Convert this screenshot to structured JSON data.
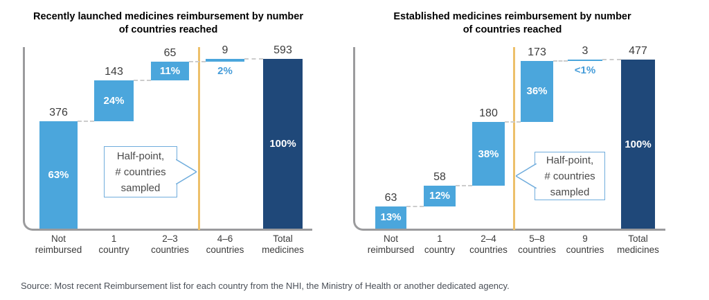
{
  "chart_data": [
    {
      "type": "bar",
      "subtype": "waterfall",
      "title": "Recently launched medicines reimbursement by number\nof countries reached",
      "categories": [
        "Not reimbursed",
        "1 country",
        "2–3 countries",
        "4–6 countries",
        "Total medicines"
      ],
      "values": [
        376,
        143,
        65,
        9,
        593
      ],
      "percent_labels": [
        "63%",
        "24%",
        "11%",
        "2%",
        "100%"
      ],
      "total_index": 4,
      "total_value": 593,
      "callout_text": "Half-point,\n# countries\nsampled",
      "half_point_divider_between": [
        "2–3 countries",
        "4–6 countries"
      ],
      "legend": "none",
      "grid": "off"
    },
    {
      "type": "bar",
      "subtype": "waterfall",
      "title": "Established medicines reimbursement by number\nof countries reached",
      "categories": [
        "Not reimbursed",
        "1 country",
        "2–4 countries",
        "5–8 countries",
        "9 countries",
        "Total medicines"
      ],
      "values": [
        63,
        58,
        180,
        173,
        3,
        477
      ],
      "percent_labels": [
        "13%",
        "12%",
        "38%",
        "36%",
        "<1%",
        "100%"
      ],
      "total_index": 5,
      "total_value": 477,
      "callout_text": "Half-point,\n# countries\nsampled",
      "half_point_divider_between": [
        "2–4 countries",
        "5–8 countries"
      ],
      "legend": "none",
      "grid": "off"
    }
  ],
  "source_note": "Source: Most recent Reimbursement list for each country from the NHI, the Ministry of Health or another dedicated agency.",
  "colors": {
    "bar_light_blue": "#4BA6DC",
    "bar_dark_navy": "#1F4879",
    "half_point_line": "#EDC06A",
    "axis_gray": "#9B9B9D",
    "connector_gray": "#CCCCCC",
    "callout_border_blue": "#6FACDC",
    "title_text": "#474747",
    "value_text": "#3B3B3B",
    "category_text": "#3B3B3B",
    "pct_blue": "#459CD9",
    "source_text": "#4A4F57"
  }
}
